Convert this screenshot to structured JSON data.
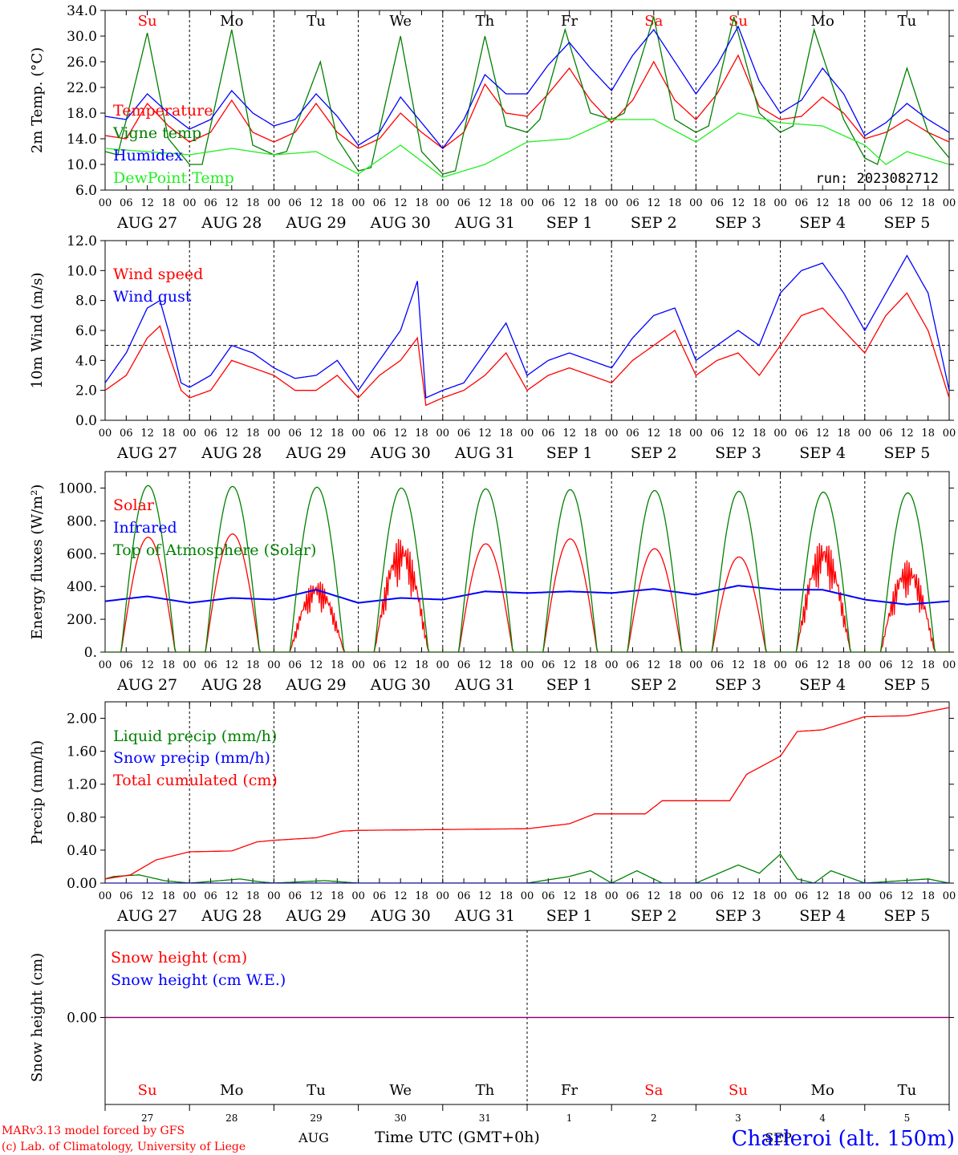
{
  "colors": {
    "red": "#ff0000",
    "green": "#008000",
    "blue": "#0000ff",
    "lightgreen": "#22ee22",
    "purple": "#800080",
    "axis": "#000000"
  },
  "days": [
    "Su",
    "Mo",
    "Tu",
    "We",
    "Th",
    "Fr",
    "Sa",
    "Su",
    "Mo",
    "Tu"
  ],
  "weekend_days": [
    0,
    6,
    7
  ],
  "hour_ticks": [
    "00",
    "06",
    "12",
    "18"
  ],
  "date_labels": [
    "AUG 27",
    "AUG 28",
    "AUG 29",
    "AUG 30",
    "AUG 31",
    "SEP  1",
    "SEP  2",
    "SEP  3",
    "SEP  4",
    "SEP  5"
  ],
  "bottom_day_numbers": [
    "27",
    "28",
    "29",
    "30",
    "31",
    "1",
    "2",
    "3",
    "4",
    "5"
  ],
  "months": {
    "aug": "AUG",
    "sep": "SEP"
  },
  "run_label": "run: 2023082712",
  "xlabel": "Time UTC (GMT+0h)",
  "credits": [
    "MARv3.13 model forced by GFS",
    "(c) Lab. of Climatology, University of Liege"
  ],
  "location": "Charleroi (alt. 150m)",
  "chart_data": [
    {
      "type": "line",
      "ylabel": "2m Temp. (°C)",
      "ylim": [
        6,
        34
      ],
      "yticks": [
        "6.0",
        "10.0",
        "14.0",
        "18.0",
        "22.0",
        "26.0",
        "30.0",
        "34.0"
      ],
      "grid_x": true,
      "x_day_start": 27,
      "series": [
        {
          "name": "Temperature",
          "color": "red",
          "x": [
            0,
            0.25,
            0.5,
            0.75,
            1,
            1.25,
            1.5,
            1.75,
            2,
            2.25,
            2.5,
            2.75,
            3,
            3.25,
            3.5,
            3.75,
            4,
            4.25,
            4.5,
            4.75,
            5,
            5.25,
            5.5,
            5.75,
            6,
            6.25,
            6.5,
            6.75,
            7,
            7.25,
            7.5,
            7.75,
            8,
            8.25,
            8.5,
            8.75,
            9,
            9.25,
            9.5,
            9.75,
            10
          ],
          "values": [
            14.5,
            14,
            19.5,
            16,
            13.5,
            15,
            20,
            15,
            13.5,
            15,
            19.5,
            15,
            12.5,
            14,
            18,
            15,
            12.5,
            15,
            22.5,
            18,
            17.5,
            21,
            25,
            20,
            16.5,
            20,
            26,
            20,
            17,
            21,
            27,
            19,
            17,
            17.5,
            20.5,
            18,
            14,
            15,
            17,
            15,
            13.5
          ]
        },
        {
          "name": "Vigne temp",
          "color": "green",
          "x": [
            0,
            0.15,
            0.5,
            0.75,
            1,
            1.15,
            1.5,
            1.75,
            2,
            2.15,
            2.55,
            2.75,
            3,
            3.15,
            3.5,
            3.75,
            4,
            4.15,
            4.5,
            4.75,
            5,
            5.15,
            5.45,
            5.75,
            6,
            6.15,
            6.5,
            6.75,
            7,
            7.15,
            7.45,
            7.75,
            8,
            8.15,
            8.4,
            8.75,
            9,
            9.15,
            9.5,
            9.75,
            10
          ],
          "values": [
            12,
            11.5,
            30.5,
            14,
            10,
            10,
            31,
            13,
            11.5,
            12,
            26,
            14,
            9,
            9.5,
            30,
            12,
            8.5,
            9,
            30,
            16,
            15,
            17,
            31,
            18,
            17,
            18,
            33,
            17,
            15,
            16,
            33,
            18,
            15,
            16,
            31,
            17,
            11,
            10,
            25,
            15,
            11
          ]
        },
        {
          "name": "Humidex",
          "color": "blue",
          "x": [
            0,
            0.25,
            0.5,
            0.75,
            1,
            1.25,
            1.5,
            1.75,
            2,
            2.25,
            2.5,
            2.75,
            3,
            3.25,
            3.5,
            3.75,
            4,
            4.25,
            4.5,
            4.75,
            5,
            5.25,
            5.5,
            5.75,
            6,
            6.25,
            6.5,
            6.75,
            7,
            7.25,
            7.5,
            7.75,
            8,
            8.25,
            8.5,
            8.75,
            9,
            9.25,
            9.5,
            9.75,
            10
          ],
          "values": [
            17.5,
            17,
            21,
            18,
            15.5,
            17,
            21.5,
            18,
            16,
            17,
            21,
            17.5,
            13,
            15,
            20.5,
            16.5,
            12.5,
            17,
            24,
            21,
            21,
            25.5,
            29,
            25,
            21.5,
            27,
            31,
            26,
            21,
            25.5,
            31.5,
            23,
            18,
            20,
            25,
            21,
            14.5,
            16.5,
            19.5,
            17,
            15
          ]
        },
        {
          "name": "DewPoint Temp",
          "color": "lightgreen",
          "x": [
            0,
            0.5,
            1,
            1.5,
            2,
            2.5,
            3,
            3.5,
            4,
            4.5,
            5,
            5.5,
            6,
            6.5,
            7,
            7.5,
            8,
            8.5,
            9,
            9.25,
            9.5,
            10
          ],
          "values": [
            12.5,
            12,
            11.5,
            12.5,
            11.5,
            12,
            8.5,
            13,
            8,
            10,
            13.5,
            14,
            17,
            17,
            13.5,
            18,
            16.5,
            16,
            13,
            10,
            12,
            10
          ]
        }
      ]
    },
    {
      "type": "line",
      "ylabel": "10m Wind (m/s)",
      "ylim": [
        0,
        12
      ],
      "yticks": [
        "0.0",
        "2.0",
        "4.0",
        "6.0",
        "8.0",
        "10.0",
        "12.0"
      ],
      "reference_line": 5,
      "grid_x": true,
      "x_day_start": 27,
      "series": [
        {
          "name": "Wind speed",
          "color": "red",
          "x": [
            0,
            0.25,
            0.5,
            0.65,
            0.75,
            0.9,
            1,
            1.25,
            1.5,
            1.75,
            2,
            2.25,
            2.5,
            2.75,
            3,
            3.25,
            3.5,
            3.7,
            3.8,
            4,
            4.25,
            4.5,
            4.75,
            5,
            5.25,
            5.5,
            5.75,
            6,
            6.25,
            6.5,
            6.75,
            7,
            7.25,
            7.5,
            7.75,
            8,
            8.25,
            8.5,
            8.75,
            9,
            9.25,
            9.5,
            9.75,
            10
          ],
          "values": [
            2,
            3,
            5.5,
            6.3,
            4.5,
            2,
            1.5,
            2,
            4,
            3.5,
            3,
            2,
            2,
            3,
            1.5,
            3,
            4,
            5.5,
            1,
            1.5,
            2,
            3,
            4.5,
            2,
            3,
            3.5,
            3,
            2.5,
            4,
            5,
            6,
            3,
            4,
            4.5,
            3,
            5,
            7,
            7.5,
            6,
            4.5,
            7,
            8.5,
            6,
            1.5
          ]
        },
        {
          "name": "Wind gust",
          "color": "blue",
          "x": [
            0,
            0.25,
            0.5,
            0.65,
            0.75,
            0.9,
            1,
            1.25,
            1.5,
            1.75,
            2,
            2.25,
            2.5,
            2.75,
            3,
            3.25,
            3.5,
            3.7,
            3.8,
            4,
            4.25,
            4.5,
            4.75,
            5,
            5.25,
            5.5,
            5.75,
            6,
            6.25,
            6.5,
            6.75,
            7,
            7.25,
            7.5,
            7.75,
            8,
            8.25,
            8.5,
            8.75,
            9,
            9.25,
            9.5,
            9.75,
            10
          ],
          "values": [
            2.5,
            4.5,
            7.5,
            8,
            6,
            2.5,
            2.2,
            3,
            5,
            4.5,
            3.5,
            2.8,
            3,
            4,
            2,
            4,
            6,
            9.3,
            1.5,
            2,
            2.5,
            4.5,
            6.5,
            3,
            4,
            4.5,
            4,
            3.5,
            5.5,
            7,
            7.5,
            4,
            5,
            6,
            5,
            8.5,
            10,
            10.5,
            8.5,
            6,
            8.5,
            11,
            8.5,
            2
          ]
        }
      ]
    },
    {
      "type": "line",
      "ylabel": "Energy fluxes (W/m²)",
      "ylim": [
        0,
        1100
      ],
      "yticks": [
        "0.",
        "200.",
        "400.",
        "600.",
        "800.",
        "1000."
      ],
      "grid_x": true,
      "x_day_start": 27,
      "series": [
        {
          "name": "Solar",
          "color": "red",
          "daily_peak": [
            700,
            720,
            440,
            700,
            660,
            690,
            630,
            580,
            690,
            560
          ]
        },
        {
          "name": "Infrared",
          "color": "blue",
          "x": [
            0,
            0.5,
            1,
            1.5,
            2,
            2.5,
            3,
            3.5,
            4,
            4.5,
            5,
            5.5,
            6,
            6.5,
            7,
            7.5,
            8,
            8.5,
            9,
            9.5,
            10
          ],
          "values": [
            310,
            340,
            300,
            330,
            320,
            380,
            300,
            330,
            320,
            370,
            360,
            370,
            360,
            385,
            350,
            405,
            380,
            380,
            320,
            290,
            310
          ]
        },
        {
          "name": "Top of Atmosphere (Solar)",
          "color": "green",
          "daily_peak": [
            1015,
            1010,
            1005,
            1000,
            995,
            990,
            985,
            980,
            975,
            970
          ]
        }
      ]
    },
    {
      "type": "line",
      "ylabel": "Precip (mm/h)",
      "ylim": [
        0,
        2.2
      ],
      "yticks": [
        "0.00",
        "0.40",
        "0.80",
        "1.20",
        "1.60",
        "2.00"
      ],
      "grid_x": true,
      "x_day_start": 27,
      "series": [
        {
          "name": "Liquid precip (mm/h)",
          "color": "green",
          "x": [
            0,
            0.1,
            0.4,
            0.7,
            1,
            1.6,
            1.8,
            2,
            2.6,
            3,
            5,
            5.5,
            5.75,
            6,
            6.3,
            6.5,
            6.6,
            7,
            7.5,
            7.75,
            8,
            8.2,
            8.4,
            8.6,
            9,
            9.75,
            10
          ],
          "values": [
            0.05,
            0.08,
            0.1,
            0.03,
            0,
            0.05,
            0.02,
            0,
            0.03,
            0,
            0,
            0.08,
            0.15,
            0,
            0.15,
            0.05,
            0,
            0,
            0.22,
            0.12,
            0.35,
            0.05,
            0,
            0.15,
            0,
            0.05,
            0
          ]
        },
        {
          "name": "Snow precip (mm/h)",
          "color": "blue",
          "x": [
            0,
            10
          ],
          "values": [
            0,
            0
          ]
        },
        {
          "name": "Total cumulated (cm)",
          "color": "red",
          "x": [
            0,
            0.3,
            0.6,
            1,
            1.5,
            1.8,
            2,
            2.5,
            2.8,
            3,
            4,
            5,
            5.5,
            5.8,
            6.4,
            6.6,
            7.4,
            7.6,
            8,
            8.2,
            8.5,
            9,
            9.5,
            10
          ],
          "values": [
            0.05,
            0.1,
            0.28,
            0.38,
            0.39,
            0.5,
            0.52,
            0.55,
            0.63,
            0.64,
            0.65,
            0.66,
            0.72,
            0.84,
            0.84,
            1.0,
            1.0,
            1.32,
            1.54,
            1.84,
            1.86,
            2.02,
            2.03,
            2.13
          ]
        }
      ]
    },
    {
      "type": "line",
      "ylabel": "Snow height (cm)",
      "ylim": [
        -1,
        1
      ],
      "yticks": [
        "0.00"
      ],
      "series": [
        {
          "name": "Snow height (cm)",
          "color": "red",
          "x": [
            0,
            10
          ],
          "values": [
            0,
            0
          ]
        },
        {
          "name": "Snow height (cm W.E.)",
          "color": "blue",
          "x": [
            0,
            10
          ],
          "values": [
            0,
            0
          ]
        }
      ]
    }
  ]
}
